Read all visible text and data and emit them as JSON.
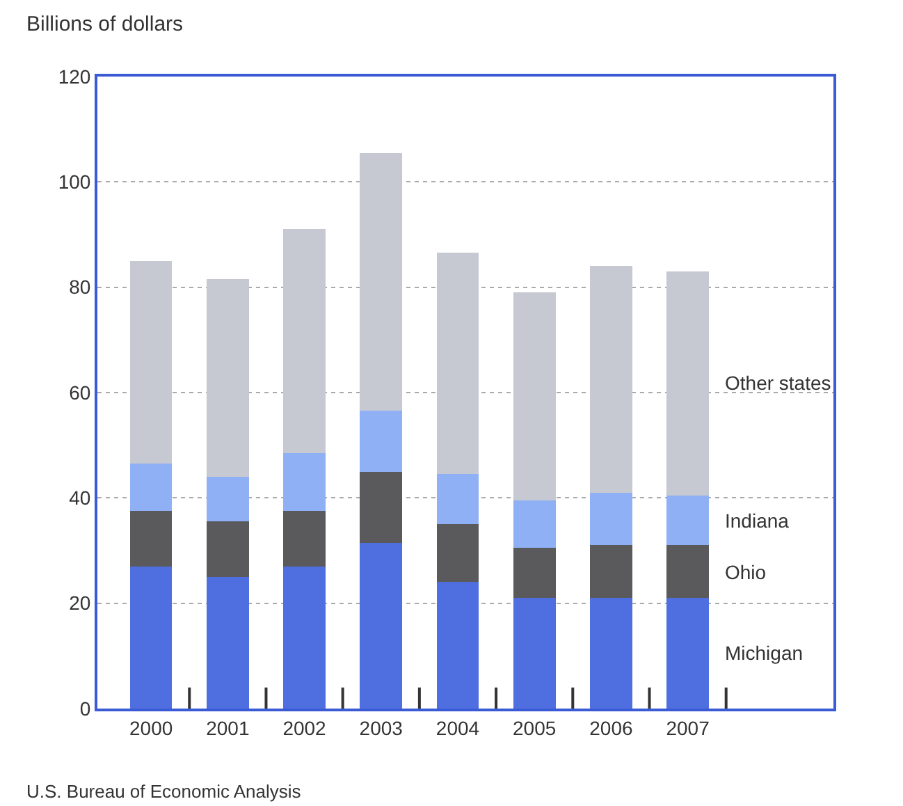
{
  "chart_data": {
    "type": "bar",
    "stacked": true,
    "ylabel": "Billions of dollars",
    "categories": [
      "2000",
      "2001",
      "2002",
      "2003",
      "2004",
      "2005",
      "2006",
      "2007"
    ],
    "series": [
      {
        "name": "Michigan",
        "color": "#4f6fe0",
        "values": [
          27,
          25,
          27,
          31.5,
          24,
          21,
          21,
          21
        ]
      },
      {
        "name": "Ohio",
        "color": "#5a5a5c",
        "values": [
          10.5,
          10.5,
          10.5,
          13.5,
          11,
          9.5,
          10,
          10
        ]
      },
      {
        "name": "Indiana",
        "color": "#8fb0f5",
        "values": [
          9,
          8.5,
          11,
          11.5,
          9.5,
          9,
          10,
          9.5
        ]
      },
      {
        "name": "Other states",
        "color": "#c6c9d1",
        "values": [
          38.5,
          37.5,
          42.5,
          49,
          42,
          39.5,
          43,
          42.5
        ]
      }
    ],
    "ylim": [
      0,
      120
    ],
    "yticks": [
      0,
      20,
      40,
      60,
      80,
      100,
      120
    ],
    "grid": "y",
    "annotations": [
      "U.S. Bureau of Economic Analysis"
    ]
  }
}
